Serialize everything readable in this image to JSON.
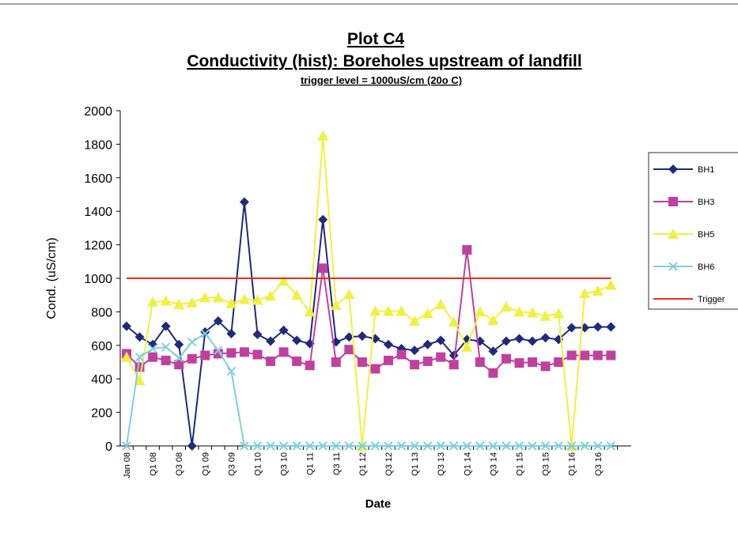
{
  "chart_data": {
    "type": "line",
    "title": "Plot C4",
    "subtitle": "Conductivity (hist): Boreholes upstream of landfill",
    "note": "trigger level = 1000uS/cm (20o C)",
    "x_label": "Date",
    "y_label": "Cond. (uS/cm)",
    "categories": [
      "Jan 08",
      null,
      "Q1 08",
      null,
      "Q3 08",
      null,
      "Q1 09",
      null,
      "Q3 09",
      null,
      "Q1 10",
      null,
      "Q3 10",
      null,
      "Q1 11",
      null,
      "Q3 11",
      null,
      "Q1 12",
      null,
      "Q3 12",
      null,
      "Q1 13",
      null,
      "Q3 13",
      null,
      "Q1 14",
      null,
      "Q3 14",
      null,
      "Q1 15",
      null,
      "Q3 15",
      null,
      "Q1 16",
      null,
      "Q3 16",
      null
    ],
    "ylim": [
      0,
      2000
    ],
    "yticks": [
      0,
      200,
      400,
      600,
      800,
      1000,
      1200,
      1400,
      1600,
      1800,
      2000
    ],
    "grid": false,
    "legend": "right",
    "series": [
      {
        "name": "BH1",
        "color": "#1f2a7a",
        "marker": "diamond",
        "values": [
          714,
          650,
          605,
          714,
          605,
          0,
          680,
          745,
          670,
          1455,
          665,
          625,
          690,
          630,
          610,
          1350,
          620,
          650,
          655,
          640,
          605,
          580,
          570,
          605,
          630,
          540,
          635,
          625,
          565,
          625,
          640,
          625,
          645,
          635,
          705,
          705,
          710,
          710
        ]
      },
      {
        "name": "BH3",
        "color": "#c040a0",
        "marker": "square",
        "values": [
          550,
          470,
          530,
          510,
          485,
          520,
          540,
          550,
          555,
          560,
          545,
          505,
          560,
          505,
          480,
          1060,
          500,
          575,
          500,
          460,
          510,
          545,
          485,
          505,
          530,
          485,
          1170,
          500,
          435,
          520,
          495,
          500,
          475,
          500,
          540,
          540,
          540,
          540
        ]
      },
      {
        "name": "BH5",
        "color": "#f0f040",
        "marker": "triangle",
        "values": [
          530,
          390,
          860,
          865,
          845,
          855,
          885,
          885,
          850,
          875,
          870,
          895,
          985,
          900,
          800,
          1850,
          840,
          905,
          0,
          805,
          805,
          805,
          745,
          790,
          845,
          740,
          590,
          800,
          750,
          830,
          800,
          795,
          775,
          790,
          0,
          910,
          925,
          960
        ]
      },
      {
        "name": "BH6",
        "color": "#80d0d8",
        "marker": "x",
        "values": [
          0,
          530,
          580,
          590,
          525,
          620,
          670,
          570,
          445,
          0,
          0,
          0,
          0,
          0,
          0,
          0,
          0,
          0,
          0,
          0,
          0,
          0,
          0,
          0,
          0,
          0,
          0,
          0,
          0,
          0,
          0,
          0,
          0,
          0,
          0,
          0,
          0,
          0
        ]
      },
      {
        "name": "Trigger",
        "color": "#e03020",
        "marker": "none",
        "values": [
          1000,
          1000,
          1000,
          1000,
          1000,
          1000,
          1000,
          1000,
          1000,
          1000,
          1000,
          1000,
          1000,
          1000,
          1000,
          1000,
          1000,
          1000,
          1000,
          1000,
          1000,
          1000,
          1000,
          1000,
          1000,
          1000,
          1000,
          1000,
          1000,
          1000,
          1000,
          1000,
          1000,
          1000,
          1000,
          1000,
          1000,
          1000
        ]
      }
    ]
  }
}
